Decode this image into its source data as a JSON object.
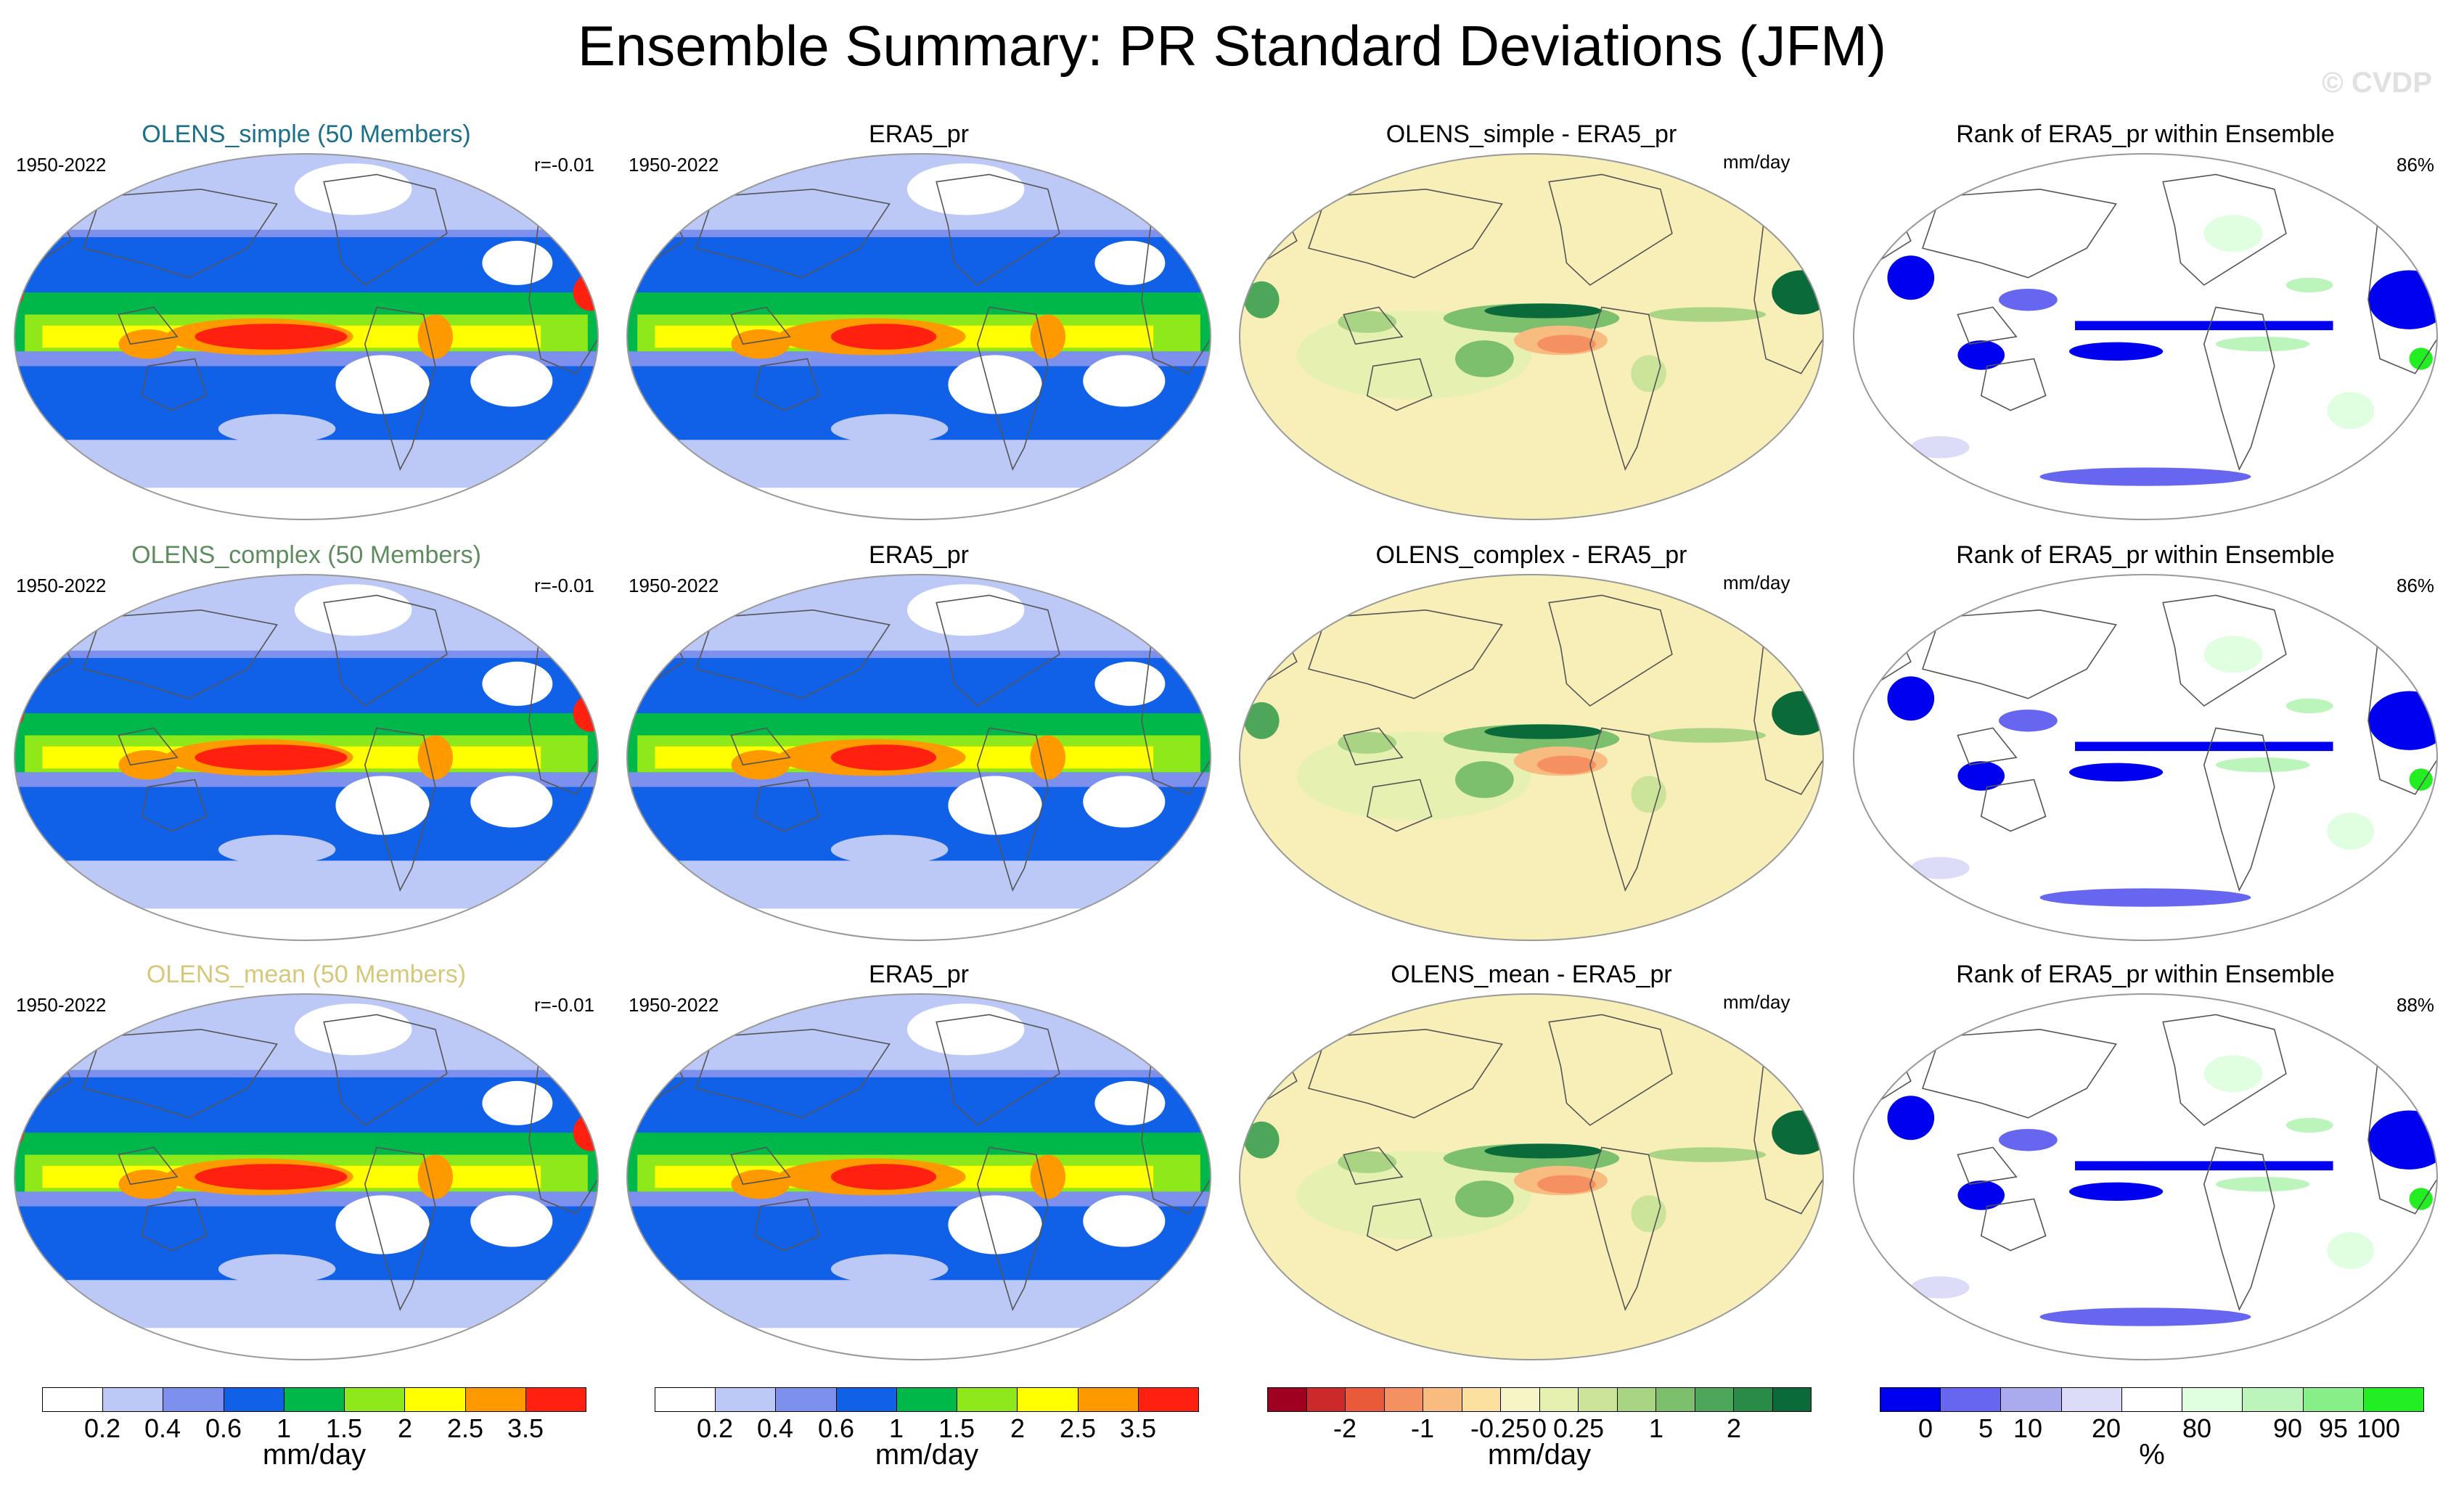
{
  "title": "Ensemble Summary: PR Standard Deviations (JFM)",
  "watermark": "© CVDP",
  "colors": {
    "pr_scale": [
      "#ffffff",
      "#bcc8f5",
      "#7d90ee",
      "#1060e8",
      "#0b60f0",
      "#00b84a",
      "#8fe81a",
      "#ffff00",
      "#ff9900",
      "#ff2010"
    ],
    "diff_scale": [
      "#a00020",
      "#cc2a2a",
      "#e85a3a",
      "#f59060",
      "#f8bc80",
      "#fbe0a0",
      "#f7f5c6",
      "#e6f0b0",
      "#cce39a",
      "#a8d484",
      "#7cc06e",
      "#4ea65a",
      "#2a8a48",
      "#0a6a3a"
    ],
    "rank_scale": [
      "#0000f0",
      "#6666f0",
      "#aaaaee",
      "#dcdcf8",
      "#ffffff",
      "#e0ffe0",
      "#bbf5bb",
      "#88ee88",
      "#22ee22"
    ],
    "title_row1": "#1b6f8a",
    "title_row2": "#5f8c5f",
    "title_row3": "#d6c87a",
    "ocean_pr_high": "#ff2010",
    "ocean_diff_bg": "#f8efb8"
  },
  "rows": [
    {
      "ens_title": "OLENS_simple (50 Members)",
      "period": "1950-2022",
      "corr": "r=-0.01",
      "obs_title": "ERA5_pr",
      "obs_period": "1950-2022",
      "diff_title": "OLENS_simple - ERA5_pr",
      "diff_units": "mm/day",
      "rank_title": "Rank of ERA5_pr within Ensemble",
      "rank_pct": "86%"
    },
    {
      "ens_title": "OLENS_complex (50 Members)",
      "period": "1950-2022",
      "corr": "r=-0.01",
      "obs_title": "ERA5_pr",
      "obs_period": "1950-2022",
      "diff_title": "OLENS_complex - ERA5_pr",
      "diff_units": "mm/day",
      "rank_title": "Rank of ERA5_pr within Ensemble",
      "rank_pct": "86%"
    },
    {
      "ens_title": "OLENS_mean (50 Members)",
      "period": "1950-2022",
      "corr": "r=-0.01",
      "obs_title": "ERA5_pr",
      "obs_period": "1950-2022",
      "diff_title": "OLENS_mean - ERA5_pr",
      "diff_units": "mm/day",
      "rank_title": "Rank of ERA5_pr within Ensemble",
      "rank_pct": "88%"
    }
  ],
  "colorbars": {
    "pr": {
      "ticks": [
        "0.2",
        "0.4",
        "0.6",
        "1",
        "1.5",
        "2",
        "2.5",
        "3.5"
      ],
      "units": "mm/day"
    },
    "pr_obs": {
      "ticks": [
        "0.2",
        "0.4",
        "0.6",
        "1",
        "1.5",
        "2",
        "2.5",
        "3.5"
      ],
      "units": "mm/day"
    },
    "diff": {
      "ticks": [
        "-2",
        "-1",
        "-0.25",
        "0",
        "0.25",
        "1",
        "2"
      ],
      "units": "mm/day"
    },
    "rank": {
      "ticks": [
        "0",
        "5",
        "10",
        "20",
        "80",
        "90",
        "95",
        "100"
      ],
      "units": "%"
    }
  },
  "chart_data": {
    "type": "heatmap",
    "title": "Ensemble Summary: PR Standard Deviations (JFM)",
    "panels_per_row": [
      "ensemble mean PR std dev",
      "ERA5_pr PR std dev",
      "ensemble - ERA5_pr difference",
      "rank of ERA5_pr within ensemble"
    ],
    "pr_levels_mm_per_day": [
      0.2,
      0.4,
      0.6,
      1,
      1.5,
      2,
      2.5,
      3.5
    ],
    "diff_levels_mm_per_day": [
      -2,
      -1,
      -0.25,
      0,
      0.25,
      1,
      2
    ],
    "rank_levels_percent": [
      0,
      5,
      10,
      20,
      80,
      90,
      95,
      100
    ],
    "pattern_correlations": [
      -0.01,
      -0.01,
      -0.01
    ],
    "rank_percent_within_10_90": [
      86,
      86,
      88
    ]
  }
}
